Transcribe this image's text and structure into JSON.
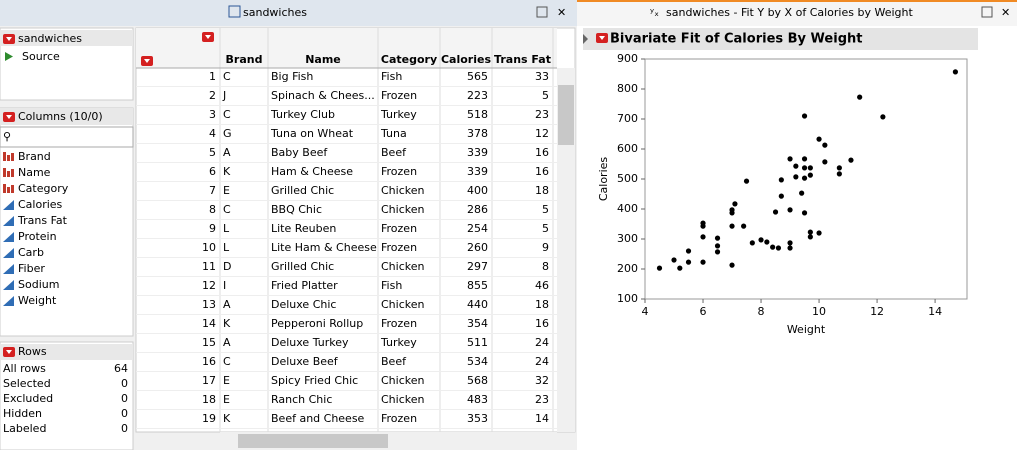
{
  "data_window": {
    "title": "sandwiches"
  },
  "table_panel": {
    "name": "sandwiches",
    "source": "Source"
  },
  "columns_panel": {
    "title": "Columns (10/0)",
    "columns": [
      "Brand",
      "Name",
      "Category",
      "Calories",
      "Trans Fat",
      "Protein",
      "Carb",
      "Fiber",
      "Sodium",
      "Weight"
    ]
  },
  "rows_panel": {
    "title": "Rows",
    "rows": [
      [
        "All rows",
        64
      ],
      [
        "Selected",
        0
      ],
      [
        "Excluded",
        0
      ],
      [
        "Hidden",
        0
      ],
      [
        "Labeled",
        0
      ]
    ]
  },
  "table": {
    "headers": [
      "Brand",
      "Name",
      "Category",
      "Calories",
      "Trans Fat"
    ],
    "rows": [
      [
        1,
        "C",
        "Big Fish",
        "Fish",
        565,
        33
      ],
      [
        2,
        "J",
        "Spinach & Chees...",
        "Frozen",
        223,
        5
      ],
      [
        3,
        "C",
        "Turkey Club",
        "Turkey",
        518,
        23
      ],
      [
        4,
        "G",
        "Tuna on Wheat",
        "Tuna",
        378,
        12
      ],
      [
        5,
        "A",
        "Baby Beef",
        "Beef",
        339,
        16
      ],
      [
        6,
        "K",
        "Ham & Cheese",
        "Frozen",
        339,
        16
      ],
      [
        7,
        "E",
        "Grilled Chic",
        "Chicken",
        400,
        18
      ],
      [
        8,
        "C",
        "BBQ Chic",
        "Chicken",
        286,
        5
      ],
      [
        9,
        "L",
        "Lite Reuben",
        "Frozen",
        254,
        5
      ],
      [
        10,
        "L",
        "Lite Ham & Cheese",
        "Frozen",
        260,
        9
      ],
      [
        11,
        "D",
        "Grilled Chic",
        "Chicken",
        297,
        8
      ],
      [
        12,
        "I",
        "Fried Platter",
        "Fish",
        855,
        46
      ],
      [
        13,
        "A",
        "Deluxe Chic",
        "Chicken",
        440,
        18
      ],
      [
        14,
        "K",
        "Pepperoni Rollup",
        "Frozen",
        354,
        16
      ],
      [
        15,
        "A",
        "Deluxe Turkey",
        "Turkey",
        511,
        24
      ],
      [
        16,
        "C",
        "Deluxe Beef",
        "Beef",
        534,
        24
      ],
      [
        17,
        "E",
        "Spicy Fried Chic",
        "Chicken",
        568,
        32
      ],
      [
        18,
        "E",
        "Ranch Chic",
        "Chicken",
        483,
        23
      ],
      [
        19,
        "K",
        "Beef and Cheese",
        "Frozen",
        353,
        14
      ]
    ]
  },
  "report_window": {
    "title": "sandwiches - Fit Y by X of Calories by Weight"
  },
  "chart_data": {
    "type": "scatter",
    "title": "Bivariate Fit of Calories By Weight",
    "x_label": "Weight",
    "y_label": "Calories",
    "color": "#000000",
    "x": [
      4.5,
      5.0,
      5.2,
      5.5,
      5.5,
      6.0,
      6.0,
      6.0,
      6.0,
      6.5,
      6.5,
      6.5,
      7.0,
      7.0,
      7.0,
      7.1,
      7.0,
      7.4,
      7.5,
      7.7,
      8.0,
      8.2,
      8.4,
      8.6,
      8.5,
      8.7,
      8.7,
      9.0,
      9.0,
      9.0,
      9.0,
      9.2,
      9.2,
      9.4,
      9.5,
      9.5,
      9.5,
      9.5,
      9.5,
      9.7,
      9.7,
      9.7,
      9.7,
      10.0,
      10.0,
      10.2,
      10.2,
      10.7,
      10.7,
      11.1,
      11.4,
      12.2,
      14.7
    ],
    "y": [
      203,
      230,
      203,
      223,
      260,
      307,
      343,
      353,
      223,
      257,
      277,
      303,
      213,
      387,
      397,
      417,
      343,
      343,
      493,
      287,
      297,
      290,
      273,
      270,
      390,
      443,
      497,
      397,
      287,
      270,
      567,
      507,
      543,
      453,
      710,
      567,
      537,
      503,
      387,
      323,
      307,
      513,
      537,
      633,
      320,
      613,
      557,
      537,
      517,
      563,
      773,
      707,
      857
    ],
    "xlim": [
      4,
      15.1
    ],
    "ylim": [
      100,
      900
    ],
    "xticks": [
      4,
      6,
      8,
      10,
      12,
      14
    ],
    "yticks": [
      100,
      200,
      300,
      400,
      500,
      600,
      700,
      800,
      900
    ]
  }
}
